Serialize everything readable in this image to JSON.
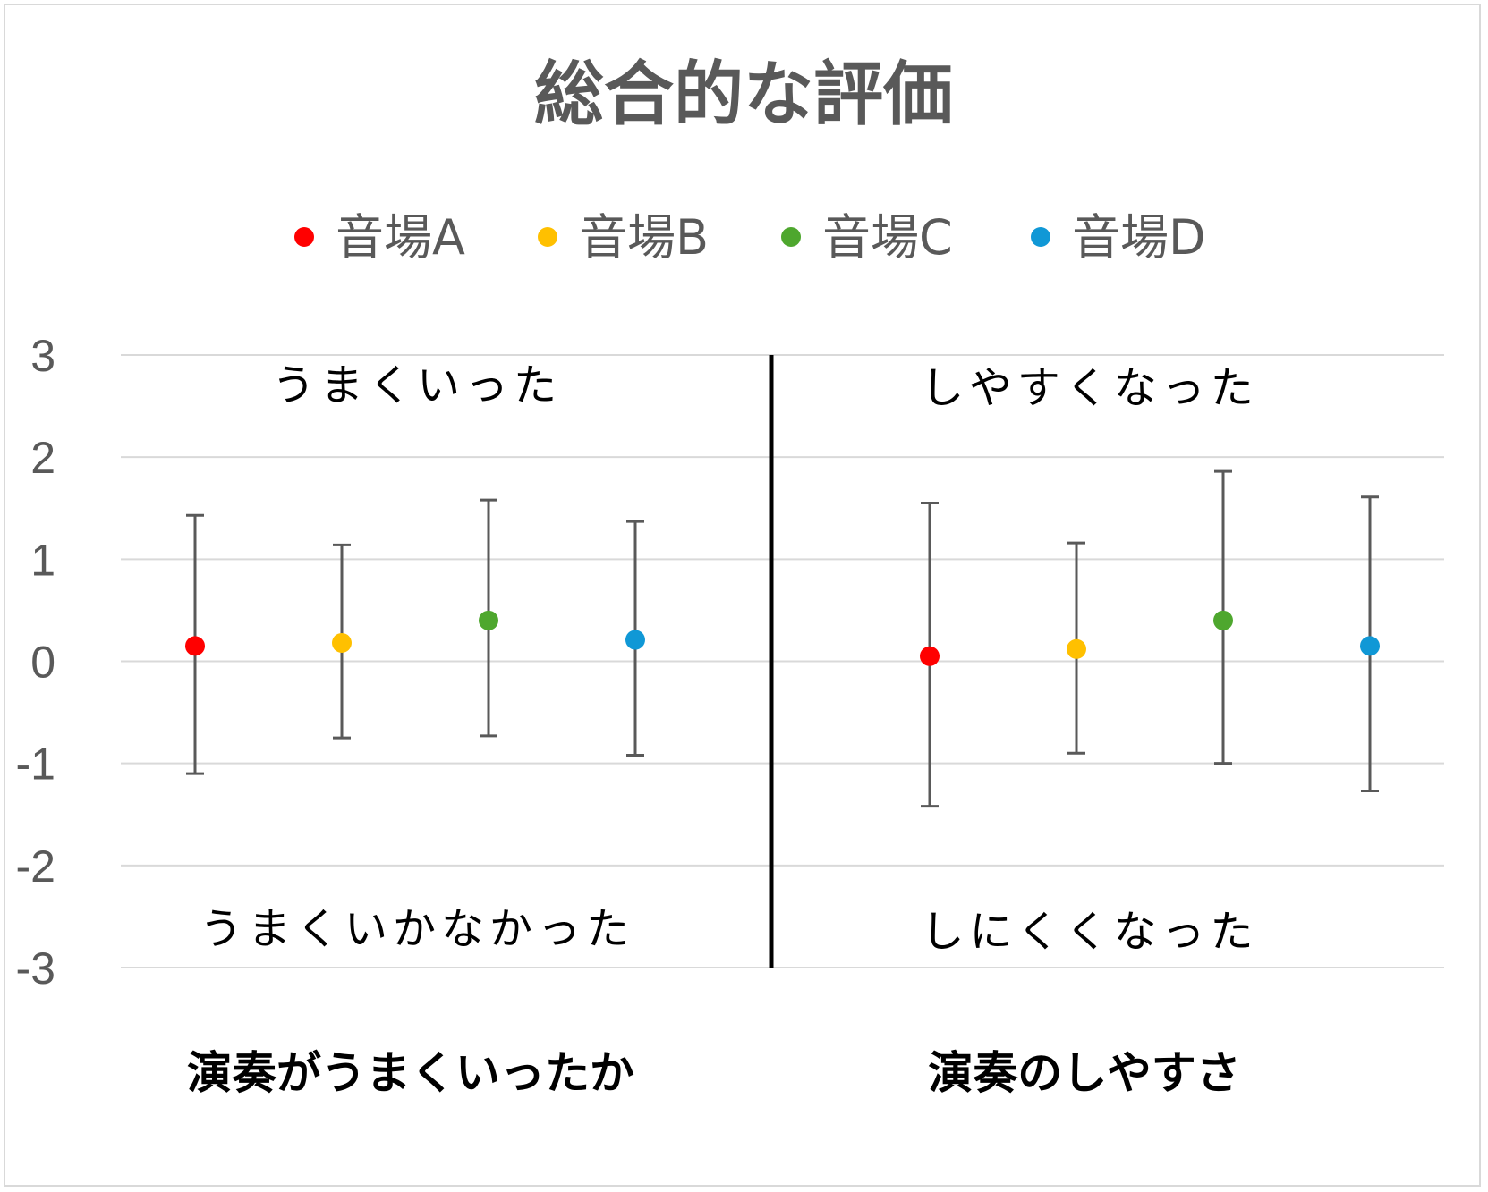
{
  "chart_data": {
    "type": "scatter",
    "title": "総合的な評価",
    "ylim": [
      -3,
      3
    ],
    "yticks": [
      "3",
      "2",
      "1",
      "0",
      "-1",
      "-2",
      "-3"
    ],
    "grid": true,
    "legend_position": "top",
    "groups": [
      "演奏がうまくいったか",
      "演奏のしやすさ"
    ],
    "annotations": {
      "group1_top": "うまくいった",
      "group1_bottom": "うまくいかなかった",
      "group2_top": "しやすくなった",
      "group2_bottom": "しにくくなった"
    },
    "series": [
      {
        "name": "音場A",
        "color": "#ff0000",
        "values": [
          0.15,
          0.05
        ],
        "err_high": [
          1.43,
          1.55
        ],
        "err_low": [
          -1.1,
          -1.42
        ]
      },
      {
        "name": "音場B",
        "color": "#ffc000",
        "values": [
          0.18,
          0.12
        ],
        "err_high": [
          1.14,
          1.16
        ],
        "err_low": [
          -0.75,
          -0.9
        ]
      },
      {
        "name": "音場C",
        "color": "#4ea72e",
        "values": [
          0.4,
          0.4
        ],
        "err_high": [
          1.58,
          1.86
        ],
        "err_low": [
          -0.73,
          -1.0
        ]
      },
      {
        "name": "音場D",
        "color": "#1098d6",
        "values": [
          0.21,
          0.15
        ],
        "err_high": [
          1.37,
          1.61
        ],
        "err_low": [
          -0.92,
          -1.27
        ]
      }
    ]
  }
}
